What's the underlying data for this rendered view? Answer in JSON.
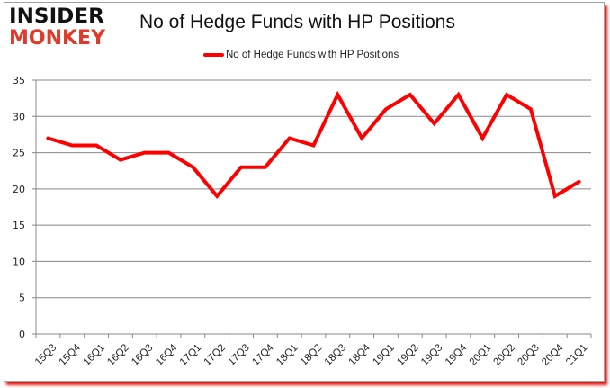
{
  "logo": {
    "line1": "INSIDER",
    "line2": "MONKEY"
  },
  "title": "No of Hedge Funds with HP Positions",
  "legend": {
    "label": "No of Hedge Funds with HP Positions",
    "color": "#ff0000"
  },
  "colors": {
    "line": "#ff0000",
    "grid": "#888888",
    "frame_shadow": "#e0201c",
    "logo_top": "#111111",
    "logo_bottom": "#e03a2a"
  },
  "chart_data": {
    "type": "line",
    "title": "No of Hedge Funds with HP Positions",
    "xlabel": "",
    "ylabel": "",
    "ylim": [
      0,
      35
    ],
    "yticks": [
      0,
      5,
      10,
      15,
      20,
      25,
      30,
      35
    ],
    "grid": true,
    "legend_position": "top",
    "categories": [
      "15Q3",
      "15Q4",
      "16Q1",
      "16Q2",
      "16Q3",
      "16Q4",
      "17Q1",
      "17Q2",
      "17Q3",
      "17Q4",
      "18Q1",
      "18Q2",
      "18Q3",
      "18Q4",
      "19Q1",
      "19Q2",
      "19Q3",
      "19Q4",
      "20Q1",
      "20Q2",
      "20Q3",
      "20Q4",
      "21Q1"
    ],
    "series": [
      {
        "name": "No of Hedge Funds with HP Positions",
        "values": [
          27,
          26,
          26,
          24,
          25,
          25,
          23,
          19,
          23,
          23,
          27,
          26,
          33,
          27,
          31,
          33,
          29,
          33,
          27,
          33,
          31,
          19,
          21
        ]
      }
    ]
  }
}
